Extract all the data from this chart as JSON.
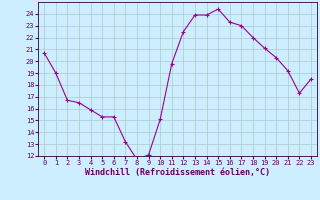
{
  "x": [
    0,
    1,
    2,
    3,
    4,
    5,
    6,
    7,
    8,
    9,
    10,
    11,
    12,
    13,
    14,
    15,
    16,
    17,
    18,
    19,
    20,
    21,
    22,
    23
  ],
  "y": [
    20.7,
    19.0,
    16.7,
    16.5,
    15.9,
    15.3,
    15.3,
    13.2,
    11.7,
    12.1,
    15.1,
    19.8,
    22.5,
    23.9,
    23.9,
    24.4,
    23.3,
    23.0,
    22.0,
    21.1,
    20.3,
    19.2,
    17.3,
    18.5
  ],
  "line_color": "#990099",
  "marker": "+",
  "marker_size": 3,
  "background_color": "#cceeff",
  "grid_color": "#aacccc",
  "xlabel": "Windchill (Refroidissement éolien,°C)",
  "ylim": [
    12,
    25
  ],
  "xlim": [
    -0.5,
    23.5
  ],
  "yticks": [
    12,
    13,
    14,
    15,
    16,
    17,
    18,
    19,
    20,
    21,
    22,
    23,
    24
  ],
  "xticks": [
    0,
    1,
    2,
    3,
    4,
    5,
    6,
    7,
    8,
    9,
    10,
    11,
    12,
    13,
    14,
    15,
    16,
    17,
    18,
    19,
    20,
    21,
    22,
    23
  ],
  "tick_fontsize": 5,
  "xlabel_fontsize": 6,
  "label_color": "#660066",
  "spine_color": "#330033",
  "linewidth": 0.8,
  "marker_linewidth": 0.8
}
